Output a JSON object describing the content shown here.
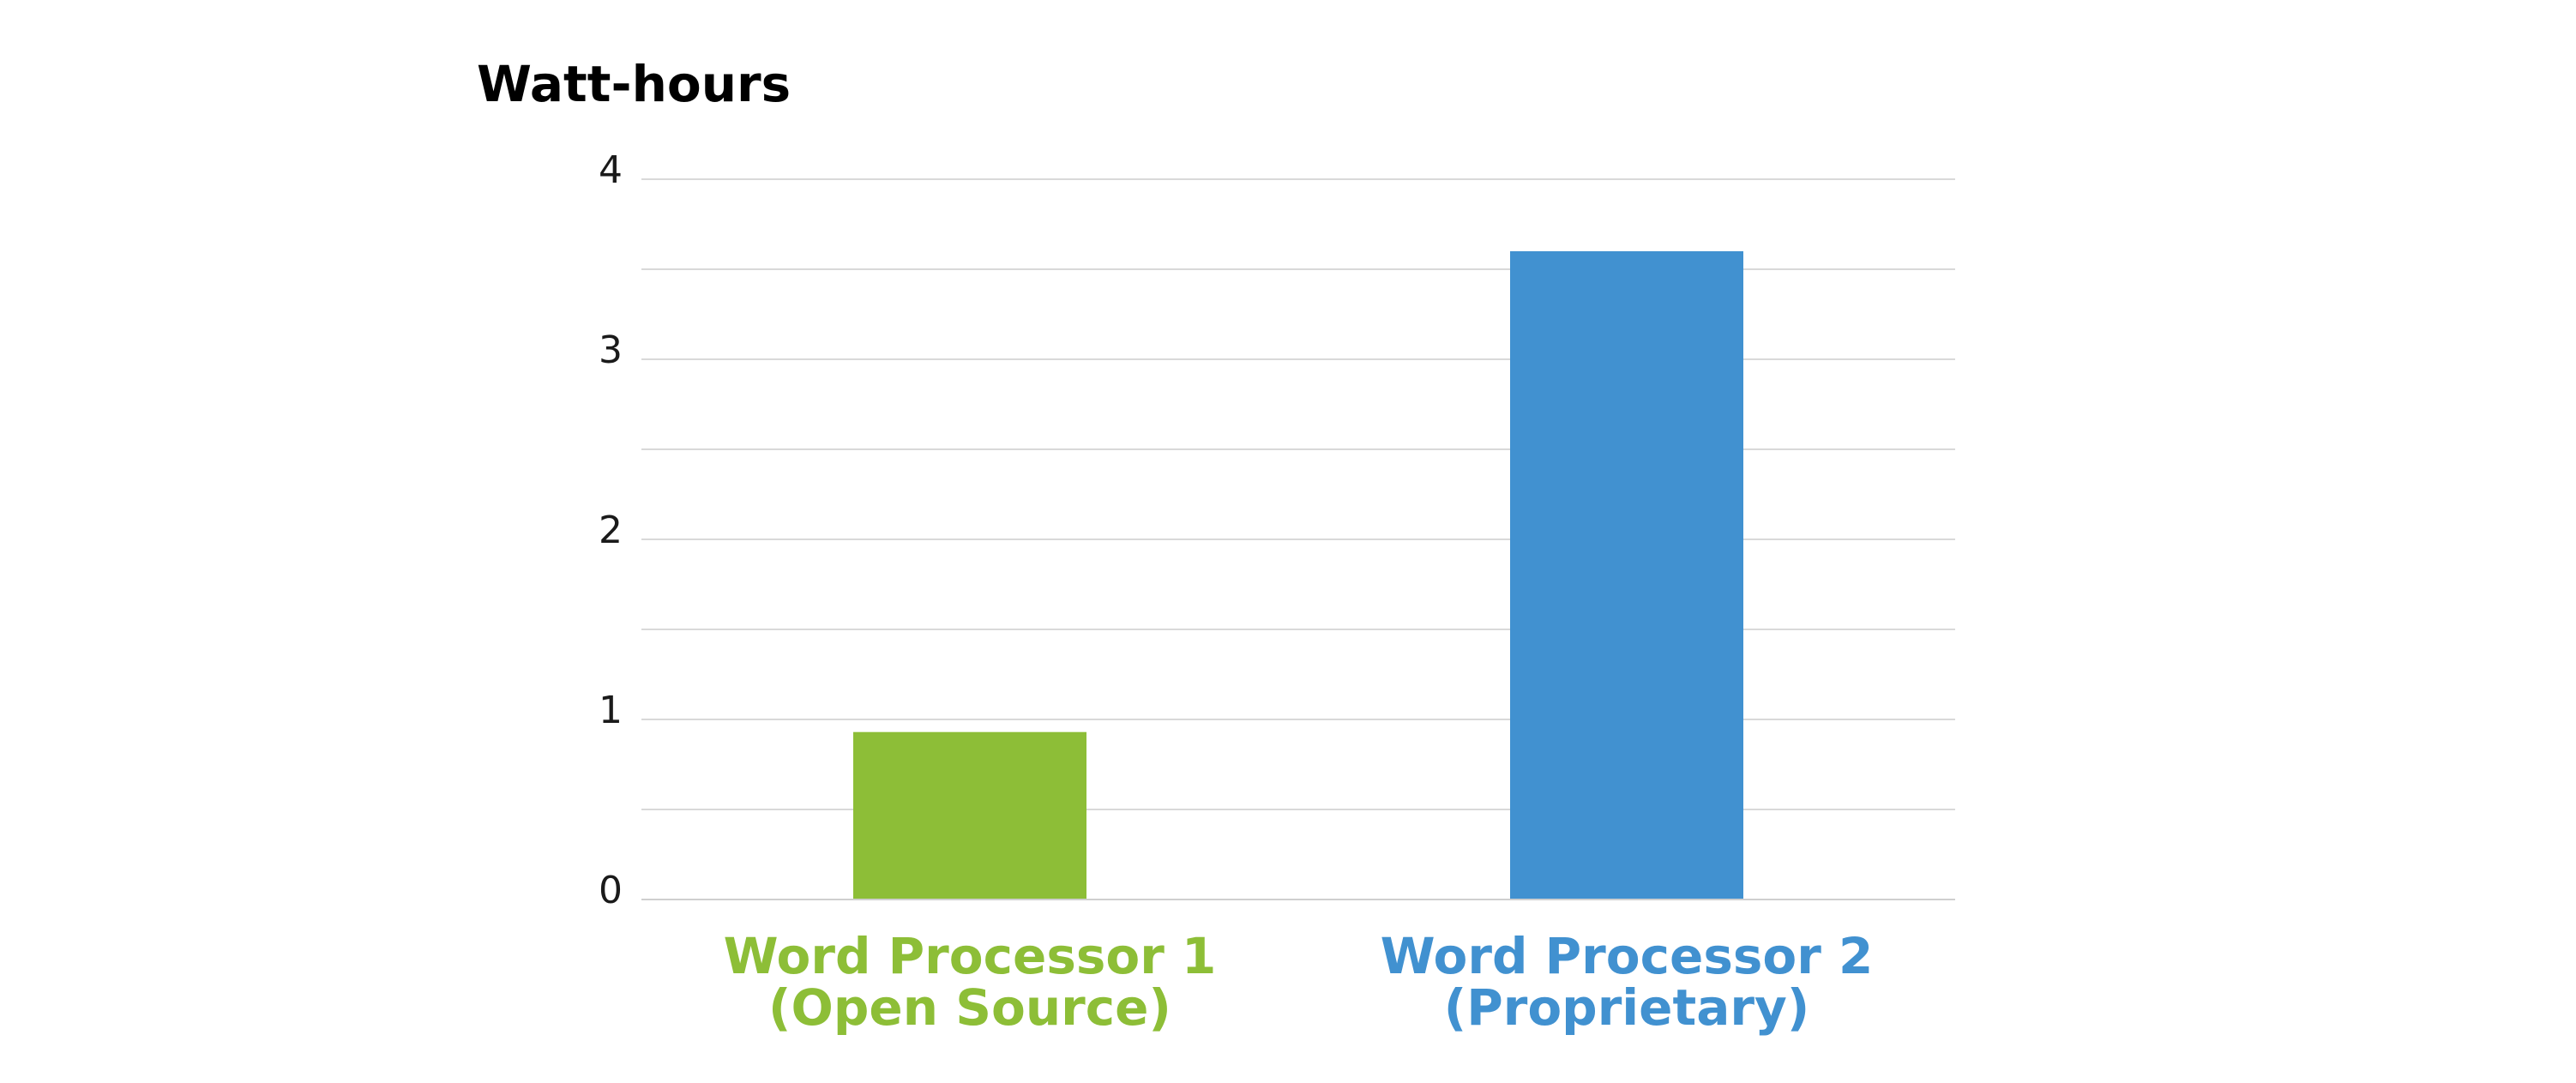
{
  "chart_data": {
    "type": "bar",
    "title": "",
    "ylabel": "Watt-hours",
    "xlabel": "",
    "ylim": [
      0,
      4
    ],
    "y_ticks": [
      "0",
      "1",
      "2",
      "3",
      "4"
    ],
    "grid": true,
    "grid_step": 0.5,
    "categories": [
      {
        "line1": "Word Processor 1",
        "line2": "(Open Source)"
      },
      {
        "line1": "Word Processor 2",
        "line2": "(Proprietary)"
      }
    ],
    "values": [
      0.93,
      3.6
    ],
    "colors": [
      "#8DBE37",
      "#4191D0"
    ]
  }
}
